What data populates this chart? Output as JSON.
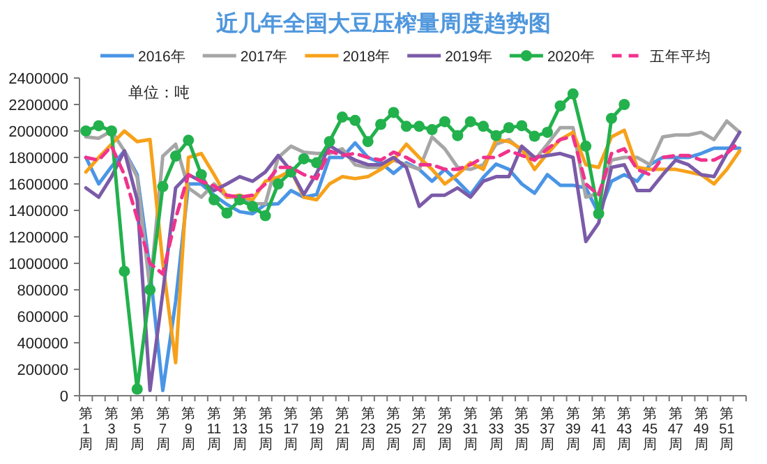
{
  "chart_data": {
    "type": "line",
    "title": "近几年全国大豆压榨量周度趋势图",
    "annotations": [
      "单位：吨"
    ],
    "categories": [
      "第1周",
      null,
      "第3周",
      null,
      "第5周",
      null,
      "第7周",
      null,
      "第9周",
      null,
      "第11周",
      null,
      "第13周",
      null,
      "第15周",
      null,
      "第17周",
      null,
      "第19周",
      null,
      "第21周",
      null,
      "第23周",
      null,
      "第25周",
      null,
      "第27周",
      null,
      "第29周",
      null,
      "第31周",
      null,
      "第33周",
      null,
      "第35周",
      null,
      "第37周",
      null,
      "第39周",
      null,
      "第41周",
      null,
      "第43周",
      null,
      "第45周",
      null,
      "第47周",
      null,
      "第49周",
      null,
      "第51周",
      null
    ],
    "ylim": [
      0,
      2400000
    ],
    "yticks": [
      0,
      200000,
      400000,
      600000,
      800000,
      1000000,
      1200000,
      1400000,
      1600000,
      1800000,
      2000000,
      2200000,
      2400000
    ],
    "legend": "top",
    "marker": "none",
    "line_style": "solid",
    "series": [
      {
        "name": "2016年",
        "color": "#4a95e6",
        "values": [
          1800000,
          1600000,
          1730000,
          1850000,
          1670000,
          950000,
          40000,
          710000,
          1600000,
          1600000,
          1515000,
          1445000,
          1390000,
          1375000,
          1445000,
          1450000,
          1550000,
          1500000,
          1520000,
          1800000,
          1800000,
          1910000,
          1800000,
          1760000,
          1680000,
          1760000,
          1710000,
          1620000,
          1710000,
          1620000,
          1520000,
          1650000,
          1750000,
          1710000,
          1600000,
          1530000,
          1670000,
          1590000,
          1590000,
          1570000,
          1375000,
          1620000,
          1670000,
          1620000,
          1745000,
          1800000,
          1800000,
          1800000,
          1830000,
          1870000,
          1870000,
          1870000
        ]
      },
      {
        "name": "2017年",
        "color": "#a6a6a6",
        "values": [
          1955000,
          1945000,
          2000000,
          1850000,
          1650000,
          800000,
          1810000,
          1900000,
          1570000,
          1500000,
          1600000,
          1500000,
          1500000,
          1450000,
          1450000,
          1800000,
          1885000,
          1840000,
          1830000,
          1830000,
          1865000,
          1745000,
          1725000,
          1725000,
          1780000,
          1745000,
          1710000,
          1955000,
          1865000,
          1725000,
          1710000,
          1745000,
          1900000,
          1935000,
          1850000,
          1780000,
          1900000,
          2025000,
          2025000,
          1500000,
          1530000,
          1780000,
          1800000,
          1800000,
          1745000,
          1955000,
          1970000,
          1970000,
          1990000,
          1935000,
          2075000,
          1990000
        ]
      },
      {
        "name": "2018年",
        "color": "#f7a11a",
        "values": [
          1690000,
          1800000,
          1900000,
          2000000,
          1920000,
          1935000,
          1000000,
          250000,
          1800000,
          1830000,
          1670000,
          1500000,
          1515000,
          1480000,
          1620000,
          1650000,
          1700000,
          1500000,
          1480000,
          1600000,
          1655000,
          1640000,
          1655000,
          1710000,
          1780000,
          1900000,
          1800000,
          1710000,
          1600000,
          1670000,
          1760000,
          1710000,
          1935000,
          1920000,
          1865000,
          1710000,
          1830000,
          1935000,
          1990000,
          1745000,
          1725000,
          1955000,
          2005000,
          1725000,
          1710000,
          1710000,
          1710000,
          1690000,
          1670000,
          1600000,
          1710000,
          1850000
        ]
      },
      {
        "name": "2019年",
        "color": "#7b5ba8",
        "values": [
          1570000,
          1500000,
          1655000,
          1850000,
          1480000,
          40000,
          780000,
          1570000,
          1670000,
          1620000,
          1550000,
          1600000,
          1655000,
          1620000,
          1690000,
          1815000,
          1700000,
          1520000,
          1680000,
          1890000,
          1830000,
          1780000,
          1745000,
          1745000,
          1800000,
          1725000,
          1430000,
          1515000,
          1515000,
          1570000,
          1500000,
          1620000,
          1655000,
          1655000,
          1885000,
          1800000,
          1815000,
          1830000,
          1800000,
          1165000,
          1305000,
          1725000,
          1745000,
          1550000,
          1550000,
          1670000,
          1780000,
          1745000,
          1670000,
          1655000,
          1830000,
          1990000
        ]
      },
      {
        "name": "2020年",
        "color": "#22b14c",
        "marker": "circle",
        "values": [
          2000000,
          2040000,
          2000000,
          940000,
          50000,
          800000,
          1580000,
          1810000,
          1930000,
          1670000,
          1480000,
          1380000,
          1480000,
          1430000,
          1360000,
          1600000,
          1690000,
          1790000,
          1760000,
          1920000,
          2105000,
          2080000,
          1920000,
          2050000,
          2140000,
          2035000,
          2035000,
          2010000,
          2070000,
          1965000,
          2070000,
          2035000,
          1965000,
          2025000,
          2040000,
          1960000,
          1990000,
          2190000,
          2280000,
          1885000,
          1375000,
          2095000,
          2200000,
          null,
          null,
          null,
          null,
          null,
          null,
          null,
          null,
          null
        ]
      },
      {
        "name": "五年平均",
        "color": "#f0338d",
        "line_style": "dashed",
        "values": [
          1800000,
          1780000,
          1885000,
          1670000,
          1340000,
          1000000,
          920000,
          1340000,
          1670000,
          1620000,
          1585000,
          1515000,
          1500000,
          1515000,
          1600000,
          1725000,
          1725000,
          1670000,
          1640000,
          1850000,
          1815000,
          1830000,
          1800000,
          1780000,
          1840000,
          1800000,
          1745000,
          1745000,
          1710000,
          1710000,
          1745000,
          1800000,
          1800000,
          1850000,
          1815000,
          1780000,
          1865000,
          1935000,
          1960000,
          1600000,
          1515000,
          1830000,
          1865000,
          1710000,
          1670000,
          1800000,
          1815000,
          1815000,
          1780000,
          1780000,
          1830000,
          1920000
        ]
      }
    ]
  }
}
